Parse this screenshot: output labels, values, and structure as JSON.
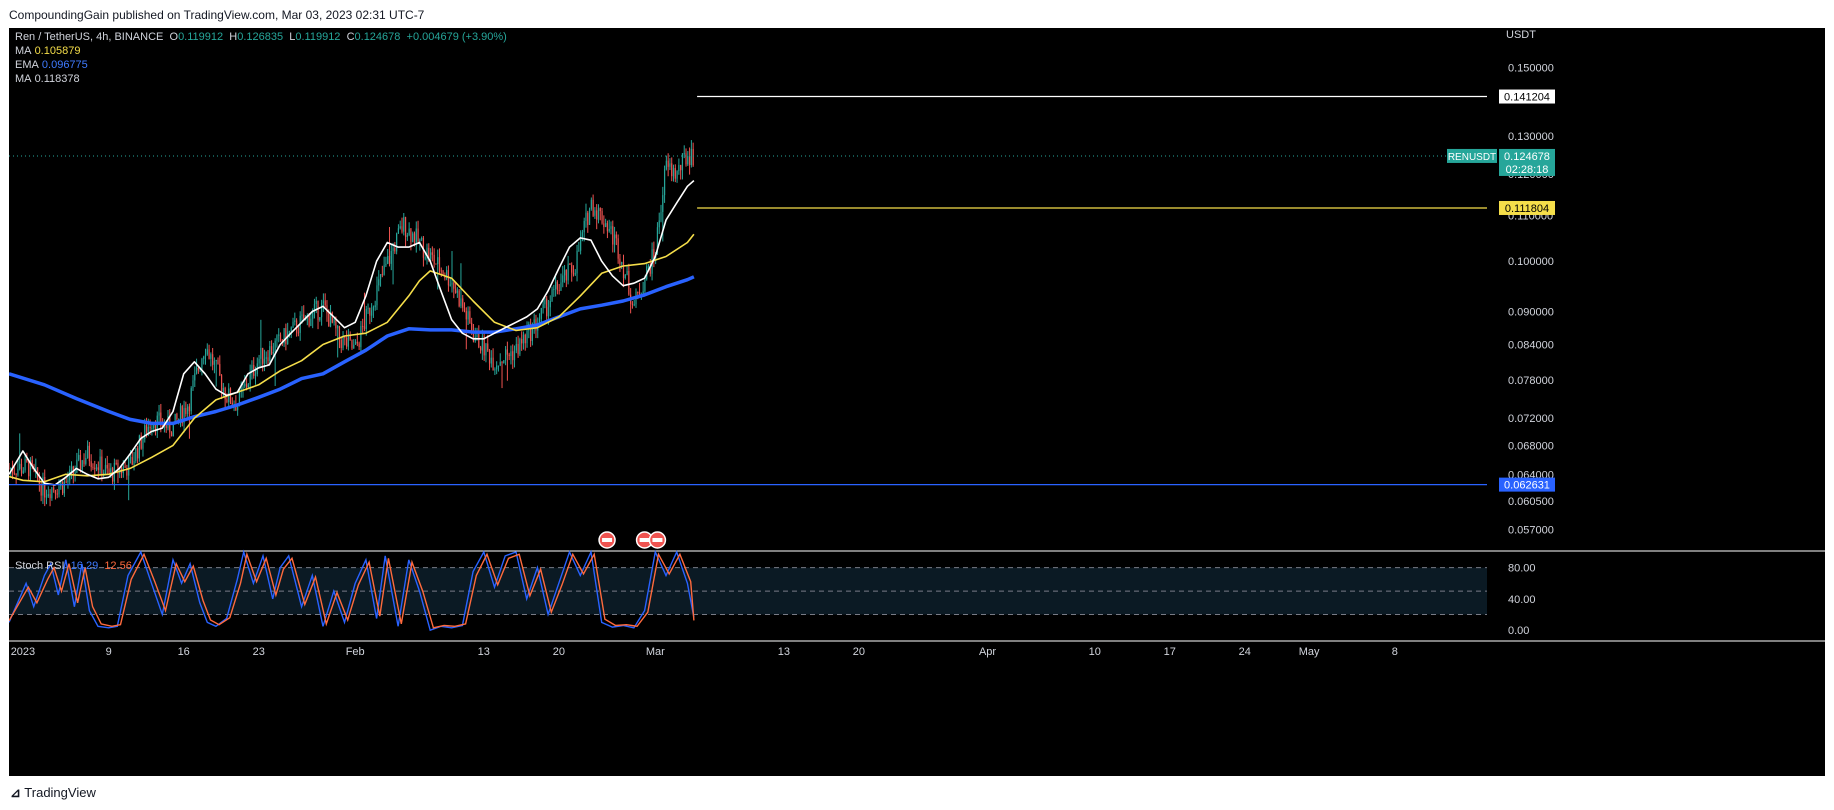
{
  "header": {
    "publisher": "CompoundingGain published on TradingView.com, Mar 03, 2023 02:31 UTC-7"
  },
  "footer": {
    "brand": "TradingView"
  },
  "legend": {
    "symbol": "Ren / TetherUS, 4h, BINANCE",
    "o_label": "O",
    "o": "0.119912",
    "h_label": "H",
    "h": "0.126835",
    "l_label": "L",
    "l": "0.119912",
    "c_label": "C",
    "c": "0.124678",
    "change": "+0.004679 (+3.90%)",
    "ma1_label": "MA",
    "ma1": "0.105879",
    "ema_label": "EMA",
    "ema": "0.096775",
    "ma2_label": "MA",
    "ma2": "0.118378",
    "stoch_label": "Stoch RSI",
    "stoch_k": "16.29",
    "stoch_d": "12.56"
  },
  "colors": {
    "bg": "#000000",
    "up": "#26a69a",
    "down": "#ef5350",
    "ma_fast": "#ffffff",
    "ma_slow": "#f5de4a",
    "ema": "#2962ff",
    "stoch_k": "#2962ff",
    "stoch_d": "#ff6a3d",
    "resistance": "#ffffff",
    "support_mid": "#f5de4a",
    "support_low": "#2962ff"
  },
  "chart_data": [
    {
      "type": "candlestick",
      "title": "Ren / TetherUS, 4h, BINANCE",
      "currency": "USDT",
      "y_scale": "log",
      "ylim": [
        0.0545,
        0.163
      ],
      "y_ticks": [
        "0.150000",
        "0.130000",
        "0.120000",
        "0.110000",
        "0.100000",
        "0.090000",
        "0.084000",
        "0.078000",
        "0.072000",
        "0.068000",
        "0.064000",
        "0.060500",
        "0.057000"
      ],
      "x_ticks": [
        "2023",
        "9",
        "16",
        "23",
        "Feb",
        "13",
        "20",
        "Mar",
        "13",
        "20",
        "Apr",
        "10",
        "17",
        "24",
        "May",
        "8"
      ],
      "x_tick_days": [
        0,
        8,
        15,
        22,
        31,
        43,
        50,
        59,
        71,
        78,
        90,
        100,
        107,
        114,
        120,
        128
      ],
      "x_range_days": [
        -1.3,
        136.6
      ],
      "last_candle_day": 62.6,
      "current_price": {
        "label": "RENUSDT",
        "value": "0.124678",
        "countdown": "02:28:18"
      },
      "horizontal_lines": [
        {
          "value": 0.141204,
          "label": "0.141204",
          "start_day": 62.9,
          "color": "#ffffff"
        },
        {
          "value": 0.111804,
          "label": "0.111804",
          "start_day": 62.9,
          "color": "#f5de4a"
        },
        {
          "value": 0.062631,
          "label": "0.062631",
          "start_day": -1.3,
          "color": "#2962ff"
        }
      ],
      "key_days": [
        -1.3,
        0.5,
        2,
        4,
        6,
        8,
        10,
        12,
        14,
        15.5,
        17,
        19,
        20,
        22,
        24,
        26,
        28,
        29.5,
        31,
        33,
        35.5,
        37,
        38,
        40,
        42,
        44,
        46,
        48,
        50,
        51.5,
        53,
        54.5,
        55.5,
        57,
        59,
        60,
        61,
        62,
        62.6
      ],
      "key_prices": [
        0.0648,
        0.065,
        0.062,
        0.0628,
        0.0668,
        0.064,
        0.0652,
        0.0718,
        0.0705,
        0.0745,
        0.084,
        0.0755,
        0.0742,
        0.0815,
        0.0845,
        0.088,
        0.091,
        0.085,
        0.083,
        0.094,
        0.108,
        0.104,
        0.101,
        0.096,
        0.086,
        0.081,
        0.083,
        0.088,
        0.095,
        0.099,
        0.113,
        0.108,
        0.103,
        0.091,
        0.102,
        0.122,
        0.12,
        0.125,
        0.1247
      ],
      "ma_fast": {
        "name": "MA",
        "days": [
          -1.3,
          0,
          1,
          2,
          3,
          4,
          5,
          6,
          7,
          8,
          9,
          10,
          11,
          12,
          13,
          14,
          15,
          16,
          17,
          18,
          19,
          20,
          21,
          22,
          23,
          24,
          25,
          26,
          27,
          28,
          29,
          30,
          31,
          32,
          33,
          34,
          35,
          36,
          37,
          38,
          39,
          40,
          41,
          42,
          43,
          44,
          45,
          46,
          47,
          48,
          49,
          50,
          51,
          52,
          53,
          54,
          55,
          56,
          57,
          58,
          59,
          60,
          61,
          62,
          62.6
        ],
        "values": [
          0.064,
          0.0672,
          0.0648,
          0.0628,
          0.0626,
          0.0636,
          0.0648,
          0.064,
          0.0634,
          0.0636,
          0.0648,
          0.0668,
          0.069,
          0.07,
          0.0705,
          0.073,
          0.079,
          0.081,
          0.079,
          0.0765,
          0.0755,
          0.076,
          0.079,
          0.08,
          0.0805,
          0.084,
          0.086,
          0.088,
          0.09,
          0.091,
          0.089,
          0.087,
          0.088,
          0.093,
          0.1,
          0.104,
          0.103,
          0.103,
          0.104,
          0.1,
          0.094,
          0.0885,
          0.086,
          0.085,
          0.085,
          0.086,
          0.087,
          0.088,
          0.089,
          0.0905,
          0.094,
          0.0985,
          0.103,
          0.105,
          0.1045,
          0.1,
          0.097,
          0.095,
          0.0955,
          0.0965,
          0.101,
          0.109,
          0.113,
          0.117,
          0.1184
        ]
      },
      "ma_slow": {
        "name": "MA",
        "days": [
          -1.3,
          0,
          2,
          4,
          6,
          8,
          10,
          12,
          14,
          16,
          18,
          20,
          22,
          24,
          26,
          28,
          30,
          32,
          34,
          36,
          37,
          38,
          40,
          42,
          44,
          46,
          48,
          50,
          52,
          54,
          56,
          58,
          60,
          62,
          62.6
        ],
        "values": [
          0.0637,
          0.0632,
          0.063,
          0.064,
          0.0638,
          0.064,
          0.0648,
          0.0663,
          0.068,
          0.072,
          0.0748,
          0.076,
          0.0772,
          0.0795,
          0.0812,
          0.084,
          0.0855,
          0.086,
          0.088,
          0.093,
          0.096,
          0.098,
          0.0965,
          0.092,
          0.088,
          0.0865,
          0.087,
          0.089,
          0.093,
          0.0975,
          0.099,
          0.0995,
          0.101,
          0.104,
          0.1058
        ]
      },
      "ema": {
        "name": "EMA",
        "days": [
          -1.3,
          2,
          5,
          8,
          10,
          12,
          14,
          16,
          18,
          20,
          22,
          24,
          26,
          28,
          30,
          32,
          34,
          36,
          38,
          40,
          42,
          44,
          46,
          48,
          50,
          52,
          54,
          56,
          58,
          60,
          62,
          62.6
        ],
        "values": [
          0.079,
          0.0772,
          0.075,
          0.073,
          0.0718,
          0.0712,
          0.0712,
          0.0722,
          0.073,
          0.074,
          0.0752,
          0.0765,
          0.0782,
          0.079,
          0.081,
          0.083,
          0.0855,
          0.0868,
          0.0866,
          0.0866,
          0.0862,
          0.0862,
          0.0868,
          0.0875,
          0.089,
          0.0905,
          0.0912,
          0.092,
          0.0932,
          0.0948,
          0.0962,
          0.0968
        ]
      }
    },
    {
      "type": "line",
      "title": "Stoch RSI",
      "ylim": [
        -10,
        100
      ],
      "y_ticks": [
        80,
        40,
        0
      ],
      "levels": [
        80,
        50,
        20
      ],
      "series": [
        {
          "name": "K",
          "color": "#2962ff",
          "last": 16.29,
          "days": [
            -1.3,
            0.3,
            1,
            2,
            2.6,
            3.3,
            4,
            4.8,
            5.5,
            6.2,
            7,
            8,
            8.8,
            9.8,
            11,
            12,
            13,
            14,
            14.8,
            15.6,
            16.5,
            17.2,
            18,
            19,
            20,
            20.6,
            21.5,
            22.4,
            23.3,
            24,
            24.8,
            26,
            27,
            28,
            29,
            30,
            31,
            32,
            33,
            33.8,
            35,
            36,
            37,
            38,
            39,
            40,
            41,
            42,
            43,
            44,
            45,
            46,
            47,
            48,
            49,
            50,
            51,
            52,
            53,
            54,
            55,
            56,
            57,
            58,
            59,
            60,
            61,
            62,
            62.6
          ],
          "values": [
            10,
            60,
            30,
            70,
            85,
            45,
            90,
            30,
            85,
            25,
            5,
            3,
            5,
            70,
            100,
            60,
            20,
            90,
            60,
            85,
            35,
            10,
            5,
            15,
            65,
            100,
            60,
            95,
            40,
            80,
            95,
            30,
            70,
            5,
            50,
            10,
            60,
            90,
            15,
            95,
            5,
            90,
            50,
            0,
            5,
            3,
            6,
            75,
            100,
            55,
            95,
            100,
            40,
            80,
            20,
            60,
            100,
            70,
            100,
            10,
            4,
            6,
            3,
            25,
            100,
            70,
            100,
            60,
            16.29
          ]
        },
        {
          "name": "D",
          "color": "#ff6a3d",
          "last": 12.56,
          "days": [
            -1.3,
            0.5,
            1.3,
            2.3,
            2.9,
            3.6,
            4.3,
            5.1,
            5.8,
            6.5,
            7.3,
            8.3,
            9.1,
            10.1,
            11.3,
            12.3,
            13.3,
            14.3,
            15.1,
            15.9,
            16.8,
            17.5,
            18.3,
            19.3,
            20.3,
            20.9,
            21.8,
            22.7,
            23.6,
            24.3,
            25.1,
            26.3,
            27.3,
            28.3,
            29.3,
            30.3,
            31.3,
            32.3,
            33.3,
            34.1,
            35.3,
            36.3,
            37.3,
            38.3,
            39.3,
            40.3,
            41.3,
            42.3,
            43.3,
            44.3,
            45.3,
            46.3,
            47.3,
            48.3,
            49.3,
            50.3,
            51.3,
            52.3,
            53.3,
            54.3,
            55.3,
            56.3,
            57.3,
            58.3,
            59.3,
            60.3,
            61.3,
            62.3,
            62.6
          ],
          "values": [
            12,
            55,
            35,
            65,
            80,
            50,
            85,
            35,
            80,
            30,
            8,
            5,
            7,
            65,
            97,
            62,
            25,
            85,
            62,
            82,
            38,
            13,
            7,
            16,
            60,
            97,
            62,
            92,
            45,
            78,
            92,
            33,
            68,
            8,
            48,
            13,
            58,
            87,
            18,
            92,
            8,
            87,
            50,
            3,
            6,
            5,
            8,
            70,
            97,
            58,
            92,
            97,
            44,
            78,
            23,
            58,
            97,
            72,
            97,
            14,
            6,
            7,
            5,
            23,
            97,
            72,
            97,
            62,
            12.56
          ]
        }
      ]
    }
  ],
  "event_markers": {
    "days": [
      54.5,
      58,
      59.2
    ],
    "icons": [
      "us-flag-icon",
      "us-flag-icon",
      "us-flag-icon"
    ]
  }
}
